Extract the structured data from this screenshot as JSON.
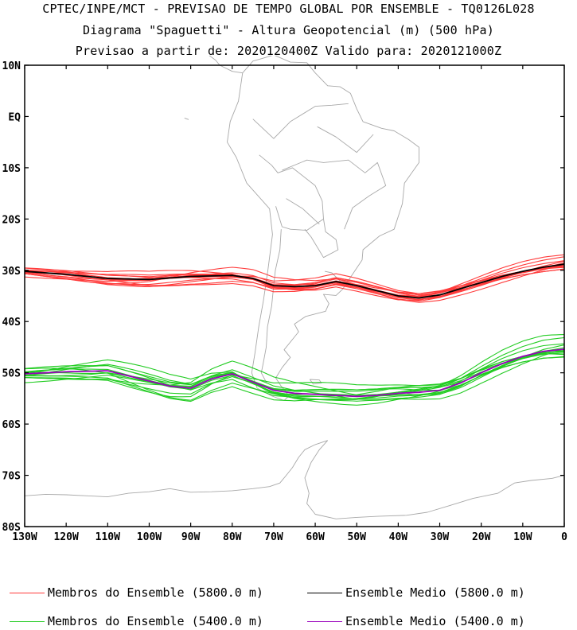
{
  "title": {
    "line1": "CPTEC/INPE/MCT - PREVISAO DE TEMPO GLOBAL POR ENSEMBLE - TQ0126L028",
    "line2": "Diagrama \"Spaguetti\" - Altura Geopotencial (m) (500 hPa)",
    "line3": "Previsao a partir de: 2020120400Z  Valido para: 2020121000Z"
  },
  "axes": {
    "lat_labels": [
      "10N",
      "EQ",
      "10S",
      "20S",
      "30S",
      "40S",
      "50S",
      "60S",
      "70S",
      "80S"
    ],
    "lat_values": [
      10,
      0,
      -10,
      -20,
      -30,
      -40,
      -50,
      -60,
      -70,
      -80
    ],
    "lon_labels": [
      "130W",
      "120W",
      "110W",
      "100W",
      "90W",
      "80W",
      "70W",
      "60W",
      "50W",
      "40W",
      "30W",
      "20W",
      "10W",
      "0"
    ],
    "lon_values": [
      -130,
      -120,
      -110,
      -100,
      -90,
      -80,
      -70,
      -60,
      -50,
      -40,
      -30,
      -20,
      -10,
      0
    ],
    "lon_range": [
      -130,
      0
    ],
    "lat_range": [
      -80,
      10
    ]
  },
  "colors": {
    "member_5800": "#ff3b3b",
    "mean_5800": "#000000",
    "member_5400": "#22cc22",
    "mean_5400": "#9900bb",
    "coast": "#a8a8a8"
  },
  "legend": {
    "red_members": "Membros do Ensemble (5800.0 m)",
    "black_mean": "Ensemble Medio (5800.0 m)",
    "green_members": "Membros do Ensemble (5400.0 m)",
    "purple_mean": "Ensemble Medio (5400.0 m)"
  },
  "chart_data": {
    "type": "line",
    "series": [
      {
        "name": "Ensemble Medio (5800.0 m)",
        "x": [
          -130,
          -120,
          -110,
          -100,
          -90,
          -80,
          -75,
          -70,
          -65,
          -60,
          -55,
          -50,
          -45,
          -40,
          -35,
          -30,
          -25,
          -20,
          -15,
          -10,
          -5,
          0
        ],
        "y": [
          -30.2,
          -30.8,
          -31.6,
          -31.8,
          -31.2,
          -31.0,
          -31.6,
          -33.0,
          -33.2,
          -33.0,
          -32.2,
          -33.0,
          -34.0,
          -35.0,
          -35.4,
          -34.8,
          -33.6,
          -32.4,
          -31.2,
          -30.2,
          -29.4,
          -28.8
        ]
      },
      {
        "name": "Ensemble Medio (5400.0 m)",
        "x": [
          -130,
          -120,
          -110,
          -100,
          -95,
          -90,
          -85,
          -80,
          -75,
          -70,
          -65,
          -60,
          -55,
          -50,
          -45,
          -40,
          -35,
          -30,
          -25,
          -20,
          -15,
          -10,
          -5,
          0
        ],
        "y": [
          -50.2,
          -49.8,
          -49.6,
          -51.6,
          -52.6,
          -53.0,
          -51.2,
          -50.2,
          -51.8,
          -53.4,
          -54.0,
          -54.2,
          -54.4,
          -54.6,
          -54.4,
          -54.0,
          -53.8,
          -53.4,
          -52.0,
          -50.0,
          -48.2,
          -46.8,
          -45.8,
          -45.4
        ]
      }
    ]
  }
}
